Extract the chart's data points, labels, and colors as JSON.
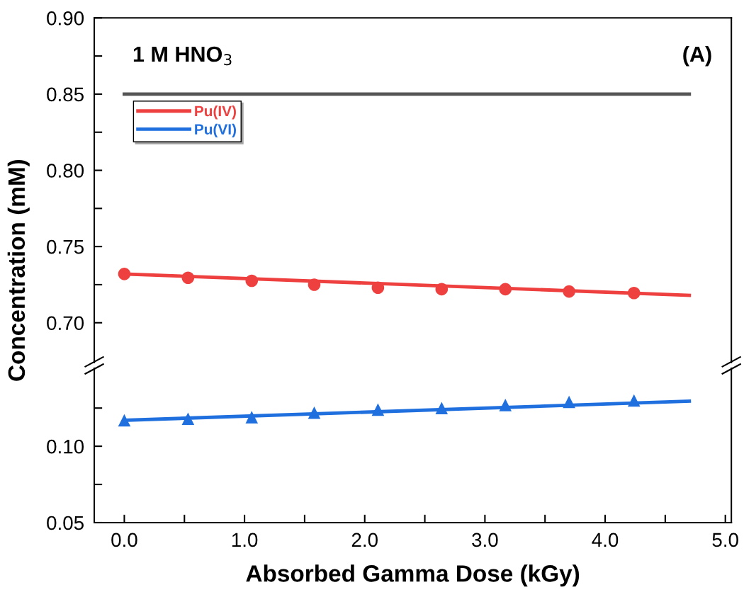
{
  "chart_data": [
    {
      "type": "scatter",
      "ylabel": "Concentration (mM)",
      "annotations": [
        "1 M HNO$_{3}$",
        "(A)"
      ],
      "legend": "top left",
      "tick_labels": "y",
      "xlim": [
        -0.25,
        5.05
      ],
      "ylim": [
        0.674,
        0.9
      ],
      "yticks": [
        {
          "value": 0.7,
          "label": "0.70"
        },
        {
          "value": 0.725,
          "label": null
        },
        {
          "value": 0.75,
          "label": "0.75"
        },
        {
          "value": 0.775,
          "label": null
        },
        {
          "value": 0.8,
          "label": "0.80"
        },
        {
          "value": 0.825,
          "label": null
        },
        {
          "value": 0.85,
          "label": "0.85"
        },
        {
          "value": 0.875,
          "label": null
        },
        {
          "value": 0.9,
          "label": "0.90"
        }
      ],
      "series": [
        {
          "type": "line",
          "color": "#555555",
          "x": [
            0,
            4.7
          ],
          "values": [
            0.85,
            0.85
          ],
          "marker": "none"
        },
        {
          "type": "line",
          "name": "Pu(IV)",
          "color": "#ef4040",
          "x": [
            0,
            4.7
          ],
          "values": [
            0.732,
            0.718
          ],
          "marker": "none"
        },
        {
          "color": "#ef4040",
          "marker": "circle",
          "x": [
            0,
            0.53,
            1.06,
            1.58,
            2.11,
            2.64,
            3.17,
            3.7,
            4.24
          ],
          "values": [
            0.732,
            0.7295,
            0.7275,
            0.725,
            0.723,
            0.722,
            0.722,
            0.7205,
            0.7195
          ]
        }
      ]
    },
    {
      "type": "scatter",
      "xlabel": "Absorbed Gamma Dose (kGy)",
      "xlim": [
        -0.25,
        5.05
      ],
      "ylim": [
        0.05,
        0.151
      ],
      "xticks": [
        {
          "value": 0,
          "label": "0.0"
        },
        {
          "value": 0.5,
          "label": null
        },
        {
          "value": 1,
          "label": "1.0"
        },
        {
          "value": 1.5,
          "label": null
        },
        {
          "value": 2,
          "label": "2.0"
        },
        {
          "value": 2.5,
          "label": null
        },
        {
          "value": 3,
          "label": "3.0"
        },
        {
          "value": 3.5,
          "label": null
        },
        {
          "value": 4,
          "label": "4.0"
        },
        {
          "value": 4.5,
          "label": null
        },
        {
          "value": 5,
          "label": "5.0"
        }
      ],
      "yticks": [
        {
          "value": 0.05,
          "label": "0.05"
        },
        {
          "value": 0.075,
          "label": null
        },
        {
          "value": 0.1,
          "label": "0.10"
        },
        {
          "value": 0.125,
          "label": null
        }
      ],
      "series": [
        {
          "type": "line",
          "name": "Pu(VI)",
          "color": "#1f6fdf",
          "x": [
            0,
            4.7
          ],
          "values": [
            0.117,
            0.1295
          ],
          "marker": "none"
        },
        {
          "color": "#1f6fdf",
          "marker": "triangle",
          "x": [
            0,
            0.53,
            1.06,
            1.58,
            2.11,
            2.64,
            3.17,
            3.7,
            4.24
          ],
          "values": [
            0.117,
            0.118,
            0.119,
            0.122,
            0.124,
            0.125,
            0.127,
            0.129,
            0.13
          ]
        }
      ]
    }
  ]
}
